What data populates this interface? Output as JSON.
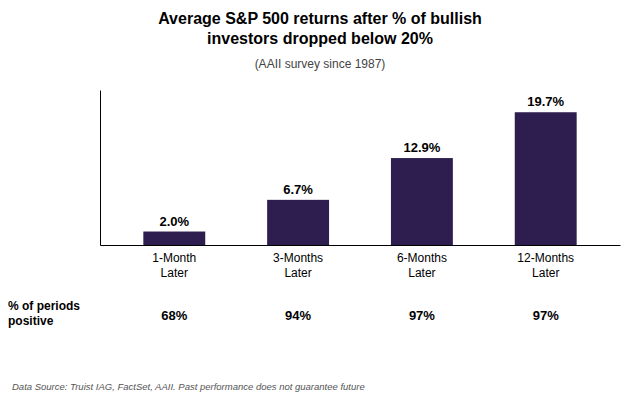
{
  "chart_data": {
    "type": "bar",
    "title": "Average S&P 500 returns after % of bullish\ninvestors dropped below 20%",
    "subtitle": "(AAII survey since 1987)",
    "categories": [
      "1-Month\nLater",
      "3-Months\nLater",
      "6-Months\nLater",
      "12-Months\nLater"
    ],
    "values": [
      2.0,
      6.7,
      12.9,
      19.7
    ],
    "value_labels": [
      "2.0%",
      "6.7%",
      "12.9%",
      "19.7%"
    ],
    "data_labels": true,
    "color": "#2d1e4f",
    "ylim": [
      0,
      23
    ],
    "tick_labels": "x",
    "positive_periods": {
      "label": "% of periods\npositive",
      "values": [
        68,
        94,
        97,
        97
      ],
      "value_labels": [
        "68%",
        "94%",
        "97%",
        "97%"
      ]
    },
    "source": "Data Source: Truist IAG, FactSet, AAII. Past performance does not guarantee future"
  }
}
